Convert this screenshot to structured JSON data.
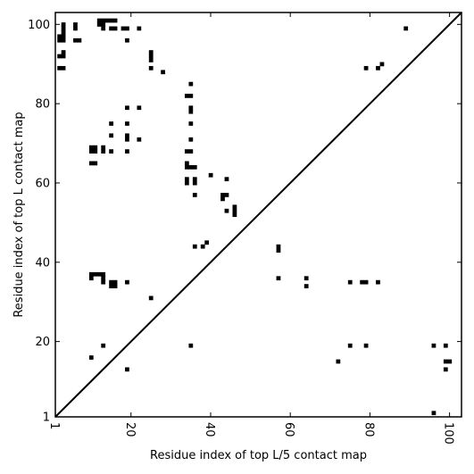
{
  "chart_data": {
    "type": "heatmap",
    "title": "",
    "xlabel": "Residue index of top L/5 contact map",
    "ylabel": "Residue index of top L contact map",
    "xlim": [
      1,
      103
    ],
    "ylim": [
      1,
      103
    ],
    "xticks": [
      1,
      20,
      40,
      60,
      80,
      100
    ],
    "yticks": [
      1,
      20,
      40,
      60,
      80,
      100
    ],
    "grid": false,
    "diagonal_line": true,
    "colors": {
      "cell": "#000000",
      "background": "#ffffff",
      "frame": "#000000"
    },
    "cells_above_diagonal": [
      [
        2,
        96
      ],
      [
        2,
        97
      ],
      [
        3,
        96
      ],
      [
        3,
        97
      ],
      [
        3,
        98
      ],
      [
        3,
        99
      ],
      [
        3,
        100
      ],
      [
        2,
        89
      ],
      [
        3,
        89
      ],
      [
        2,
        92
      ],
      [
        3,
        92
      ],
      [
        3,
        93
      ],
      [
        6,
        99
      ],
      [
        6,
        100
      ],
      [
        6,
        96
      ],
      [
        7,
        96
      ],
      [
        12,
        100
      ],
      [
        12,
        101
      ],
      [
        13,
        99
      ],
      [
        13,
        100
      ],
      [
        13,
        101
      ],
      [
        14,
        101
      ],
      [
        15,
        101
      ],
      [
        15,
        99
      ],
      [
        16,
        99
      ],
      [
        16,
        101
      ],
      [
        18,
        99
      ],
      [
        19,
        99
      ],
      [
        19,
        96
      ],
      [
        22,
        99
      ],
      [
        25,
        93
      ],
      [
        25,
        92
      ],
      [
        25,
        91
      ],
      [
        25,
        89
      ],
      [
        28,
        88
      ],
      [
        19,
        79
      ],
      [
        22,
        79
      ],
      [
        10,
        69
      ],
      [
        11,
        69
      ],
      [
        10,
        68
      ],
      [
        11,
        68
      ],
      [
        13,
        69
      ],
      [
        13,
        68
      ],
      [
        15,
        75
      ],
      [
        15,
        72
      ],
      [
        15,
        68
      ],
      [
        10,
        65
      ],
      [
        11,
        65
      ],
      [
        19,
        75
      ],
      [
        19,
        72
      ],
      [
        19,
        71
      ],
      [
        19,
        68
      ],
      [
        22,
        71
      ],
      [
        34,
        82
      ],
      [
        35,
        82
      ],
      [
        35,
        85
      ],
      [
        35,
        79
      ],
      [
        35,
        78
      ],
      [
        35,
        75
      ],
      [
        35,
        71
      ],
      [
        34,
        68
      ],
      [
        35,
        68
      ],
      [
        34,
        65
      ],
      [
        34,
        64
      ],
      [
        35,
        64
      ],
      [
        36,
        64
      ],
      [
        34,
        61
      ],
      [
        34,
        60
      ],
      [
        36,
        61
      ],
      [
        36,
        60
      ],
      [
        36,
        57
      ],
      [
        40,
        62
      ],
      [
        44,
        61
      ],
      [
        43,
        57
      ],
      [
        44,
        57
      ],
      [
        43,
        56
      ],
      [
        44,
        53
      ],
      [
        46,
        54
      ],
      [
        46,
        53
      ],
      [
        46,
        52
      ],
      [
        36,
        44
      ],
      [
        38,
        44
      ],
      [
        39,
        45
      ],
      [
        10,
        37
      ],
      [
        11,
        37
      ],
      [
        12,
        37
      ],
      [
        13,
        37
      ],
      [
        10,
        36
      ],
      [
        13,
        36
      ],
      [
        13,
        35
      ],
      [
        15,
        35
      ],
      [
        16,
        35
      ],
      [
        15,
        34
      ],
      [
        16,
        34
      ],
      [
        19,
        35
      ],
      [
        25,
        31
      ],
      [
        13,
        19
      ],
      [
        10,
        16
      ],
      [
        19,
        13
      ],
      [
        35,
        19
      ]
    ],
    "cells_below_diagonal": [
      [
        79,
        89
      ],
      [
        82,
        89
      ],
      [
        83,
        90
      ],
      [
        89,
        99
      ],
      [
        57,
        44
      ],
      [
        57,
        43
      ],
      [
        57,
        36
      ],
      [
        64,
        36
      ],
      [
        64,
        34
      ],
      [
        75,
        35
      ],
      [
        78,
        35
      ],
      [
        79,
        35
      ],
      [
        82,
        35
      ],
      [
        75,
        19
      ],
      [
        79,
        19
      ],
      [
        72,
        15
      ],
      [
        96,
        19
      ],
      [
        99,
        19
      ],
      [
        99,
        15
      ],
      [
        100,
        15
      ],
      [
        99,
        13
      ],
      [
        96,
        2
      ]
    ]
  }
}
